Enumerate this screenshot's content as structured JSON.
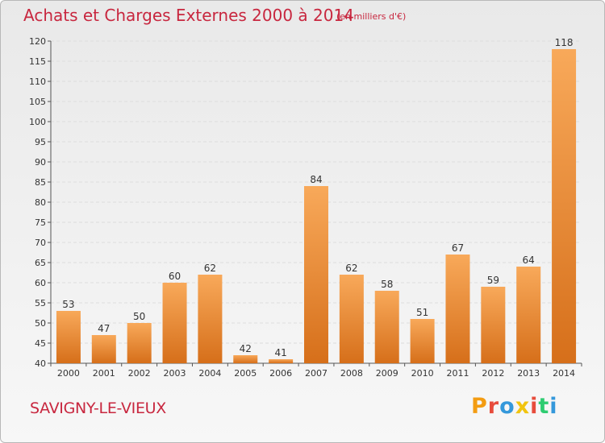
{
  "header": {
    "title": "Achats et Charges Externes 2000 à 2014",
    "subtitle": "(en milliers d'€)"
  },
  "footer": {
    "commune": "SAVIGNY-LE-VIEUX",
    "logo": "Proxiti",
    "logo_colors": [
      "#f39c12",
      "#e74c3c",
      "#3498db",
      "#f1c40f",
      "#e74c3c",
      "#2ecc71",
      "#3498db"
    ]
  },
  "chart_data": {
    "type": "bar",
    "categories": [
      "2000",
      "2001",
      "2002",
      "2003",
      "2004",
      "2005",
      "2006",
      "2007",
      "2008",
      "2009",
      "2010",
      "2011",
      "2012",
      "2013",
      "2014"
    ],
    "values": [
      53,
      47,
      50,
      60,
      62,
      42,
      41,
      84,
      62,
      58,
      51,
      67,
      59,
      64,
      118
    ],
    "ylim": [
      40,
      120
    ],
    "yticks": [
      40,
      45,
      50,
      55,
      60,
      65,
      70,
      75,
      80,
      85,
      90,
      95,
      100,
      105,
      110,
      115,
      120
    ],
    "bar_color_light": "#f8a95a",
    "bar_color_dark": "#d66f1a",
    "grid": true,
    "legend": "none"
  }
}
